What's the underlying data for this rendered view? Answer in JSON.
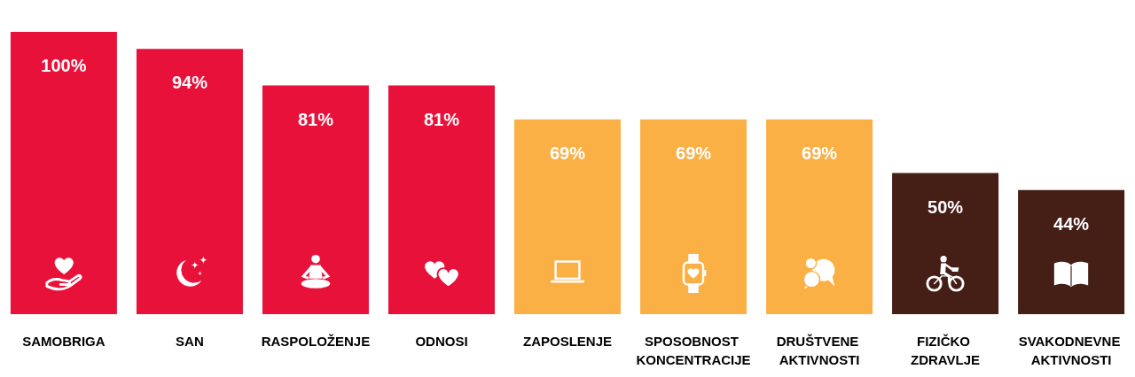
{
  "chart_data": {
    "type": "bar",
    "categories": [
      "SAMOBRIGA",
      "SAN",
      "RASPOLOŽENJE",
      "ODNOSI",
      "ZAPOSLENJE",
      "SPOSOBNOST KONCENTRACIJE",
      "DRUŠTVENE AKTIVNOSTI",
      "FIZIČKO ZDRAVLJE",
      "SVAKODNEVNE AKTIVNOSTI"
    ],
    "values": [
      100,
      94,
      81,
      81,
      69,
      69,
      69,
      50,
      44
    ],
    "value_labels": [
      "100%",
      "94%",
      "81%",
      "81%",
      "69%",
      "69%",
      "69%",
      "50%",
      "44%"
    ],
    "colors": [
      "#e8113a",
      "#e8113a",
      "#e8113a",
      "#e8113a",
      "#fbb045",
      "#fbb045",
      "#fbb045",
      "#451e16",
      "#451e16"
    ]
  }
}
